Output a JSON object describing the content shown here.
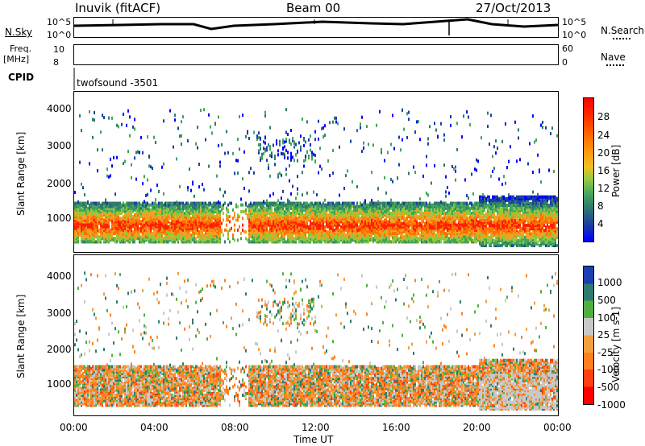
{
  "header": {
    "station": "Inuvik (fitACF)",
    "beam": "Beam 00",
    "date": "27/Oct/2013"
  },
  "strip_panels": {
    "noise_left_label": "N.Sky",
    "noise_right_label": "N.Search",
    "noise_ticks_left": [
      "10^5",
      "10^0"
    ],
    "noise_ticks_right": [
      "10^5",
      "10^0"
    ],
    "freq_label": "Freq.",
    "freq_unit": "[MHz]",
    "freq_ticks": [
      "10",
      "8"
    ],
    "nave_label": "Nave",
    "nave_ticks": [
      "60",
      "0"
    ],
    "cpid_label": "CPID",
    "cpid_value": "twofsound -3501"
  },
  "chart_data": [
    {
      "type": "heatmap",
      "title": "",
      "xlabel": "Time UT",
      "ylabel": "Slant Range [km]",
      "x_ticks": [
        "00:00",
        "04:00",
        "08:00",
        "12:00",
        "16:00",
        "20:00",
        "00:00"
      ],
      "y_ticks": [
        "1000",
        "2000",
        "3000",
        "4000"
      ],
      "ylim": [
        200,
        4500
      ],
      "colorbar": {
        "label": "Power [dB]",
        "ticks": [
          "4",
          "8",
          "12",
          "16",
          "20",
          "24",
          "28"
        ],
        "range": [
          0,
          30
        ]
      },
      "colors": [
        "#0000ff",
        "#1a3fa0",
        "#2f7a6a",
        "#3fa55a",
        "#8fc83a",
        "#f0a020",
        "#ff7000",
        "#ff2000"
      ]
    },
    {
      "type": "heatmap",
      "title": "",
      "xlabel": "Time UT",
      "ylabel": "Slant Range [km]",
      "x_ticks": [
        "00:00",
        "04:00",
        "08:00",
        "12:00",
        "16:00",
        "20:00",
        "00:00"
      ],
      "y_ticks": [
        "1000",
        "2000",
        "3000",
        "4000"
      ],
      "ylim": [
        200,
        4500
      ],
      "colorbar": {
        "label": "Velocity [m s-1]",
        "ticks": [
          "1000",
          "500",
          "100",
          "25",
          "-25",
          "-100",
          "-500",
          "-1000"
        ]
      },
      "colors": [
        "#1a3fb0",
        "#2f7a70",
        "#4fb040",
        "#c8c8c8",
        "#f0a040",
        "#ff8020",
        "#ff4010",
        "#ff0000"
      ]
    }
  ]
}
